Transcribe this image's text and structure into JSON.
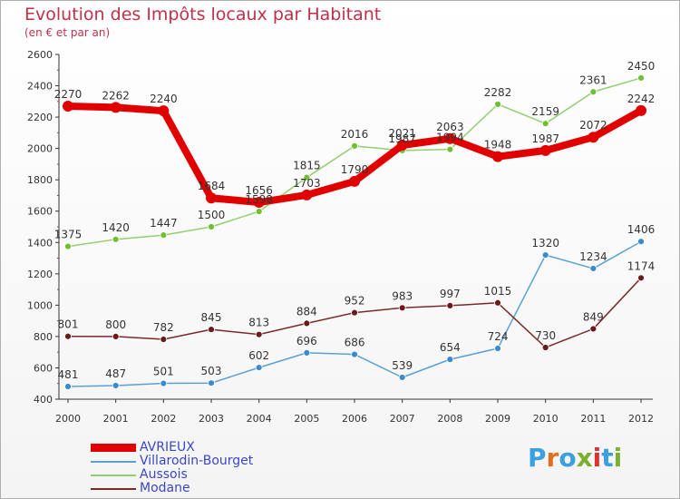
{
  "title": "Evolution des Impôts locaux par Habitant",
  "subtitle": "(en € et par an)",
  "brand": {
    "text": "Proxiti",
    "colors": [
      "#3aa0e0",
      "#e07020",
      "#3aa0e0",
      "#7ab030",
      "#e03030",
      "#3aa0e0",
      "#7ab030"
    ]
  },
  "chart_data": {
    "type": "line",
    "title": "Evolution des Impôts locaux par Habitant",
    "subtitle": "(en € et par an)",
    "x": [
      "2000",
      "2001",
      "2002",
      "2003",
      "2004",
      "2005",
      "2006",
      "2007",
      "2008",
      "2009",
      "2010",
      "2011",
      "2012"
    ],
    "ylim": [
      400,
      2600
    ],
    "yticks": [
      "400",
      "600",
      "800",
      "1000",
      "1200",
      "1400",
      "1600",
      "1800",
      "2000",
      "2200",
      "2400",
      "2600"
    ],
    "ytick_values": [
      400,
      600,
      800,
      1000,
      1200,
      1400,
      1600,
      1800,
      2000,
      2200,
      2400,
      2600
    ],
    "legend_position": "bottom-left",
    "grid": false,
    "series": [
      {
        "name": "AVRIEUX",
        "color": "#e00000",
        "marker_color": "#e00000",
        "values": [
          2270,
          2262,
          2240,
          1684,
          1656,
          1703,
          1790,
          2021,
          2063,
          1948,
          1987,
          2072,
          2242
        ],
        "labels": [
          "2270",
          "2262",
          "2240",
          "1684",
          "1656",
          "1703",
          "1790",
          "2021",
          "2063",
          "1948",
          "1987",
          "2072",
          "2242"
        ]
      },
      {
        "name": "Villarodin-Bourget",
        "color": "#5aa0d0",
        "marker_color": "#3a8ad0",
        "values": [
          481,
          487,
          501,
          503,
          602,
          696,
          686,
          539,
          654,
          724,
          1320,
          1234,
          1406
        ],
        "labels": [
          "481",
          "487",
          "501",
          "503",
          "602",
          "696",
          "686",
          "539",
          "654",
          "724",
          "1320",
          "1234",
          "1406"
        ]
      },
      {
        "name": "Aussois",
        "color": "#90d070",
        "marker_color": "#70c030",
        "values": [
          1375,
          1420,
          1447,
          1500,
          1598,
          1815,
          2016,
          1987,
          1994,
          2282,
          2159,
          2361,
          2450
        ],
        "labels": [
          "1375",
          "1420",
          "1447",
          "1500",
          "1598",
          "1815",
          "2016",
          "1987",
          "1994",
          "2282",
          "2159",
          "2361",
          "2450"
        ]
      },
      {
        "name": "Modane",
        "color": "#7a2a2a",
        "marker_color": "#6a1a1a",
        "values": [
          801,
          800,
          782,
          845,
          813,
          884,
          952,
          983,
          997,
          1015,
          730,
          849,
          1174
        ],
        "labels": [
          "801",
          "800",
          "782",
          "845",
          "813",
          "884",
          "952",
          "983",
          "997",
          "1015",
          "730",
          "849",
          "1174"
        ]
      }
    ]
  }
}
